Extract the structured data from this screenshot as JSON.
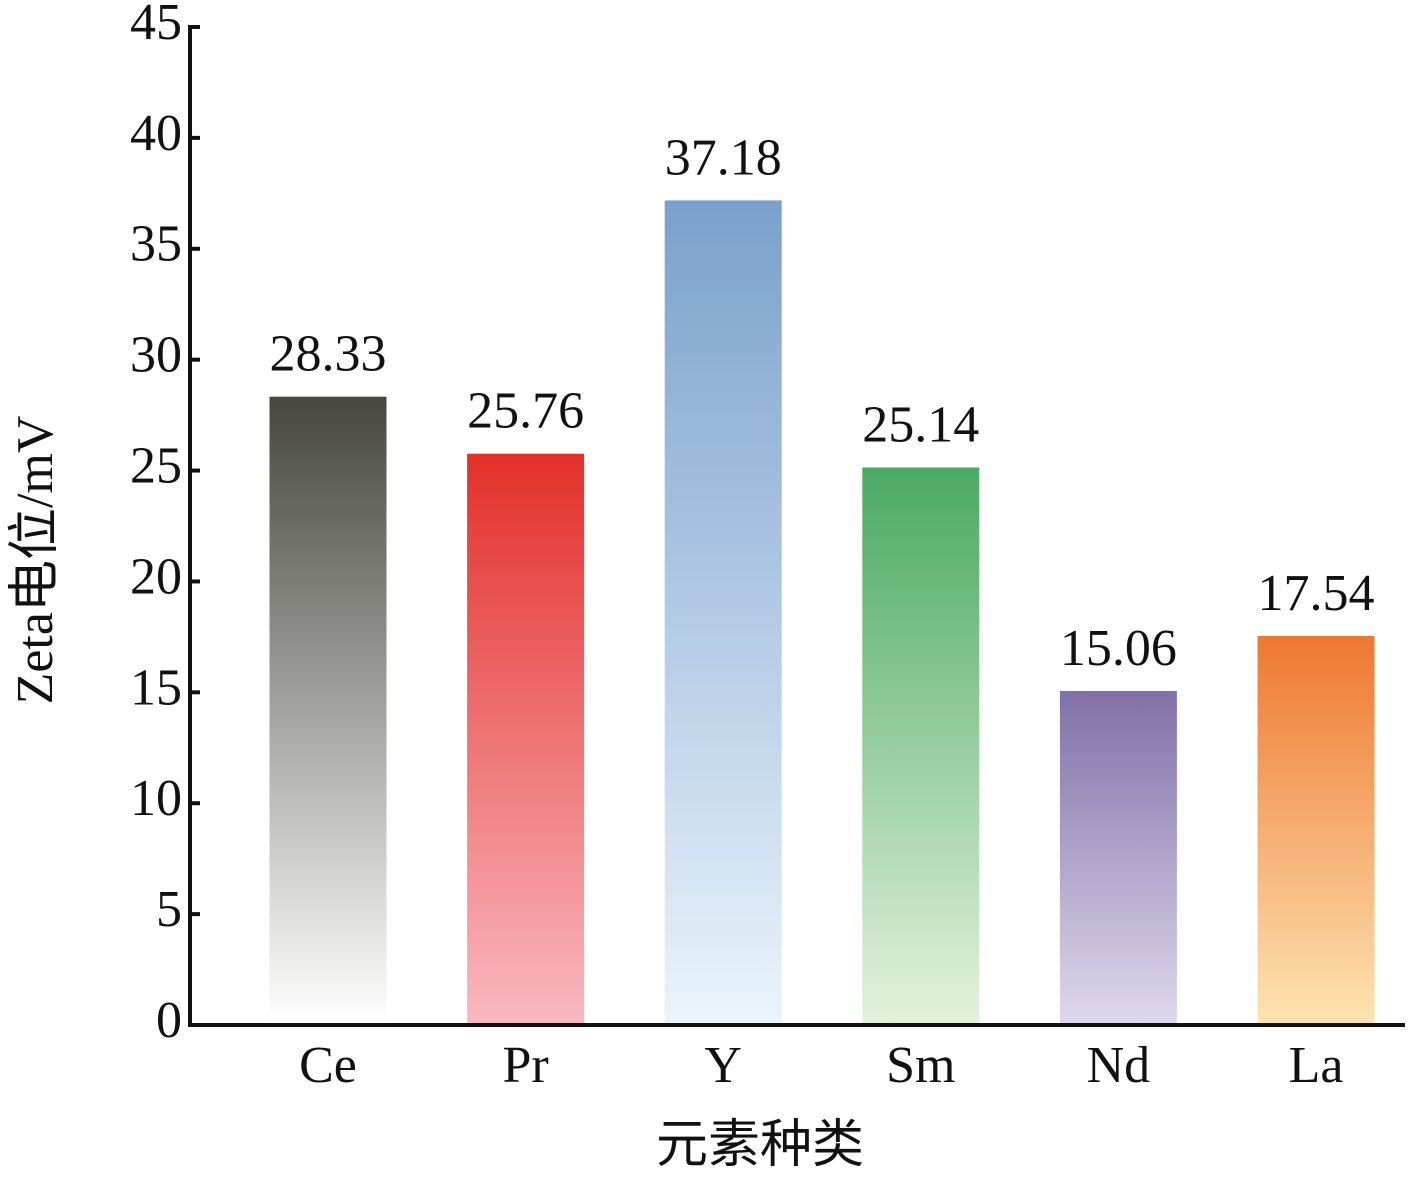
{
  "chart_data": {
    "type": "bar",
    "x_label": "元素种类",
    "y_label": "Zeta电位/mV",
    "categories": [
      "Ce",
      "Pr",
      "Y",
      "Sm",
      "Nd",
      "La"
    ],
    "values": [
      28.33,
      25.76,
      37.18,
      25.14,
      15.06,
      17.54
    ],
    "colors": [
      [
        "#474740",
        "#ffffff"
      ],
      [
        "#e3302a",
        "#f9b8c0"
      ],
      [
        "#7aa0cc",
        "#eaf4fc"
      ],
      [
        "#4aaa62",
        "#e4f2dc"
      ],
      [
        "#8070a8",
        "#e0d8ec"
      ],
      [
        "#ee7830",
        "#fde4b2"
      ]
    ],
    "ylim": [
      0,
      45
    ],
    "yticks": [
      0,
      5,
      10,
      15,
      20,
      25,
      30,
      35,
      40,
      45
    ],
    "grid": false
  }
}
